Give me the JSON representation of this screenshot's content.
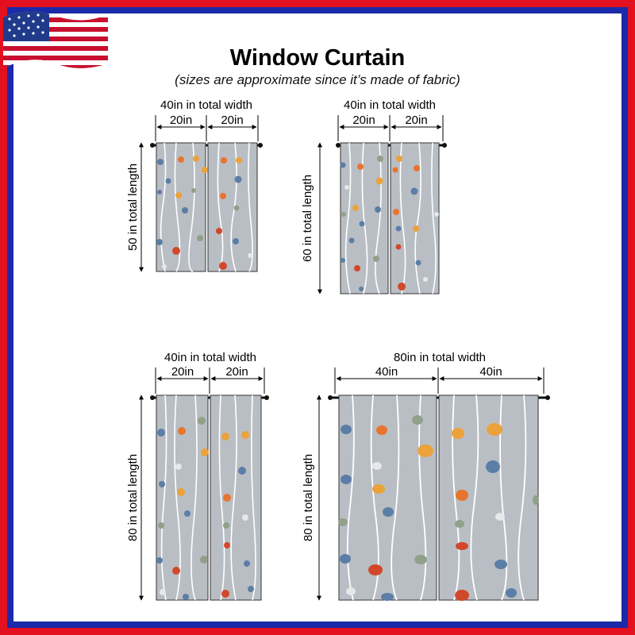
{
  "title": "Window Curtain",
  "subtitle": "(sizes are approximate since it’s made of fabric)",
  "icons": {
    "flag": "american-flag-icon"
  },
  "colors": {
    "frame_outer": "#e3101f",
    "frame_inner": "#1a2aa8",
    "fabric": "#b9bec4",
    "rod": "#111111"
  },
  "curtains": [
    {
      "total_width": "40in in total width",
      "panel_widths": [
        "20in",
        "20in"
      ],
      "total_length": "50 in total length"
    },
    {
      "total_width": "40in in total width",
      "panel_widths": [
        "20in",
        "20in"
      ],
      "total_length": "60 in total length"
    },
    {
      "total_width": "40in in total width",
      "panel_widths": [
        "20in",
        "20in"
      ],
      "total_length": "80 in total length"
    },
    {
      "total_width": "80in in total width",
      "panel_widths": [
        "40in",
        "40in"
      ],
      "total_length": "80 in total length"
    }
  ]
}
